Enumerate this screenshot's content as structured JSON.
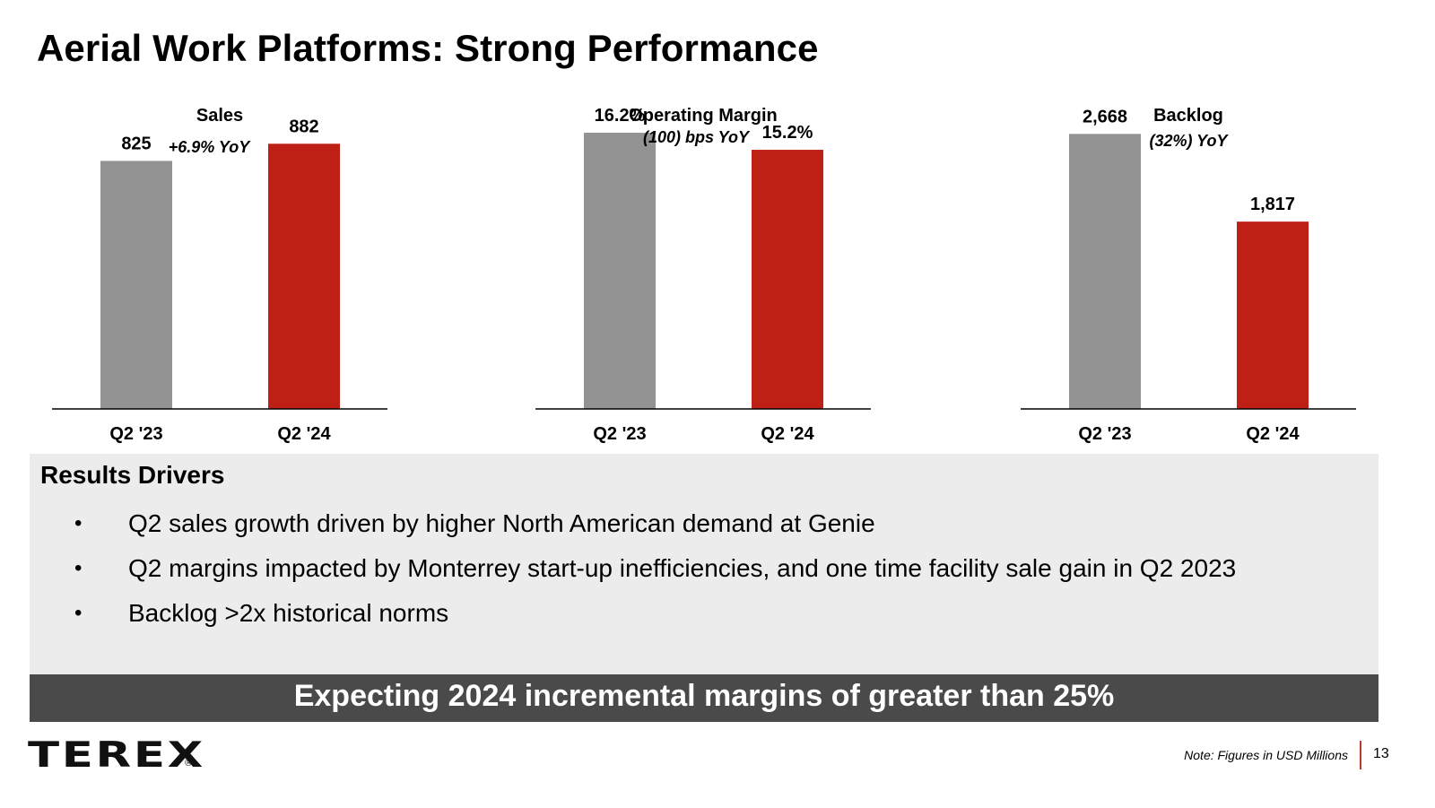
{
  "page": {
    "title": "Aerial Work Platforms: Strong Performance"
  },
  "colors": {
    "prior_year_bar": "#939393",
    "current_year_bar": "#bf2016",
    "banner_bg": "#4a4a4a",
    "drivers_bg": "#ececec"
  },
  "chart_data": [
    {
      "type": "bar",
      "title": "Sales",
      "subtitle": "+6.9% YoY",
      "categories": [
        "Q2 '23",
        "Q2 '24"
      ],
      "values": [
        825,
        882
      ],
      "labels": [
        "825",
        "882"
      ],
      "ylim": [
        0,
        1032
      ]
    },
    {
      "type": "bar",
      "title": "Operating Margin",
      "subtitle": "(100) bps YoY",
      "categories": [
        "Q2 '23",
        "Q2 '24"
      ],
      "values": [
        16.2,
        15.2
      ],
      "labels": [
        "16.2%",
        "15.2%"
      ],
      "ylim": [
        0,
        18.2
      ]
    },
    {
      "type": "bar",
      "title": "Backlog",
      "subtitle": "(32%) YoY",
      "categories": [
        "Q2 '23",
        "Q2 '24"
      ],
      "values": [
        2668,
        1817
      ],
      "labels": [
        "2,668",
        "1,817"
      ],
      "ylim": [
        0,
        3010
      ]
    }
  ],
  "drivers": {
    "heading": "Results Drivers",
    "bullet_symbol": "•",
    "items": [
      "Q2 sales growth driven by higher North American demand at Genie",
      "Q2 margins impacted by Monterrey start-up inefficiencies, and one time facility sale gain in Q2 2023",
      "Backlog >2x historical norms"
    ]
  },
  "banner": {
    "text": "Expecting 2024 incremental margins of greater than 25%"
  },
  "footer": {
    "logo_text": "TEREX",
    "logo_mark": "®",
    "note": "Note: Figures in USD Millions",
    "page_number": "13"
  }
}
